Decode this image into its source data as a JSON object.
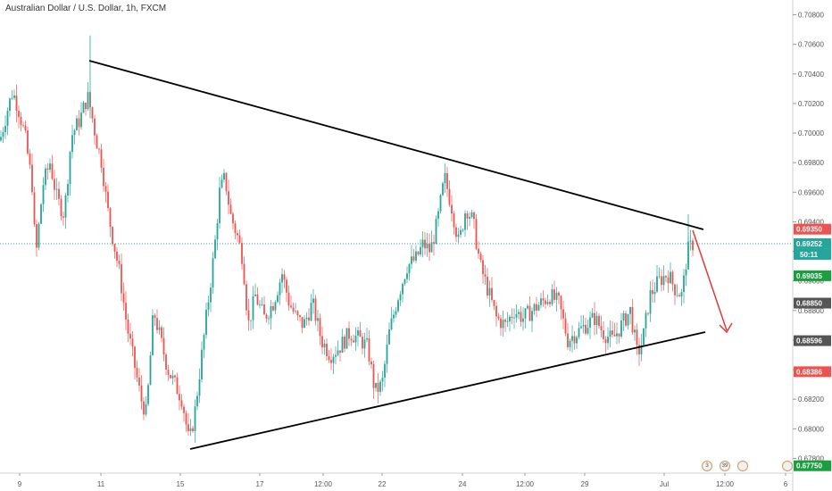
{
  "title": "Australian Dollar / U.S. Dollar, 1h, FXCM",
  "colors": {
    "up": "#26a69a",
    "down": "#ef5350",
    "trendline": "#000000",
    "arrow": "#e53935",
    "dotted": "#26a69a"
  },
  "chart_data": {
    "type": "candlestick",
    "ylim": [
      0.677,
      0.709
    ],
    "y_ticks": [
      "0.70800",
      "0.70600",
      "0.70400",
      "0.70200",
      "0.70000",
      "0.69800",
      "0.69600",
      "0.69400",
      "0.69200",
      "0.69000",
      "0.68800",
      "0.68600",
      "0.68400",
      "0.68200",
      "0.68000",
      "0.67800"
    ],
    "x_labels": [
      "9",
      "11",
      "15",
      "17",
      "12:00",
      "22",
      "24",
      "12:00",
      "29",
      "Jul",
      "12:00",
      "6"
    ],
    "price_tags": [
      {
        "value": 0.6935,
        "label": "0.69350",
        "color": "#ef5350"
      },
      {
        "value": 0.69252,
        "label": "0.69252",
        "color": "#26a69a"
      },
      {
        "value": 0.69035,
        "label": "0.69035",
        "color": "#1b9e3e"
      },
      {
        "value": 0.6885,
        "label": "0.68850",
        "color": "#555555"
      },
      {
        "value": 0.68596,
        "label": "0.68596",
        "color": "#555555"
      },
      {
        "value": 0.68386,
        "label": "0.68386",
        "color": "#ef5350"
      },
      {
        "value": 0.6775,
        "label": "0.67750",
        "color": "#1b9e3e"
      }
    ],
    "countdown": "50:11",
    "current_price": 0.69252
  },
  "events": [
    {
      "label": "3"
    },
    {
      "label": "39"
    },
    {
      "label": ""
    },
    {
      "label": ""
    }
  ]
}
